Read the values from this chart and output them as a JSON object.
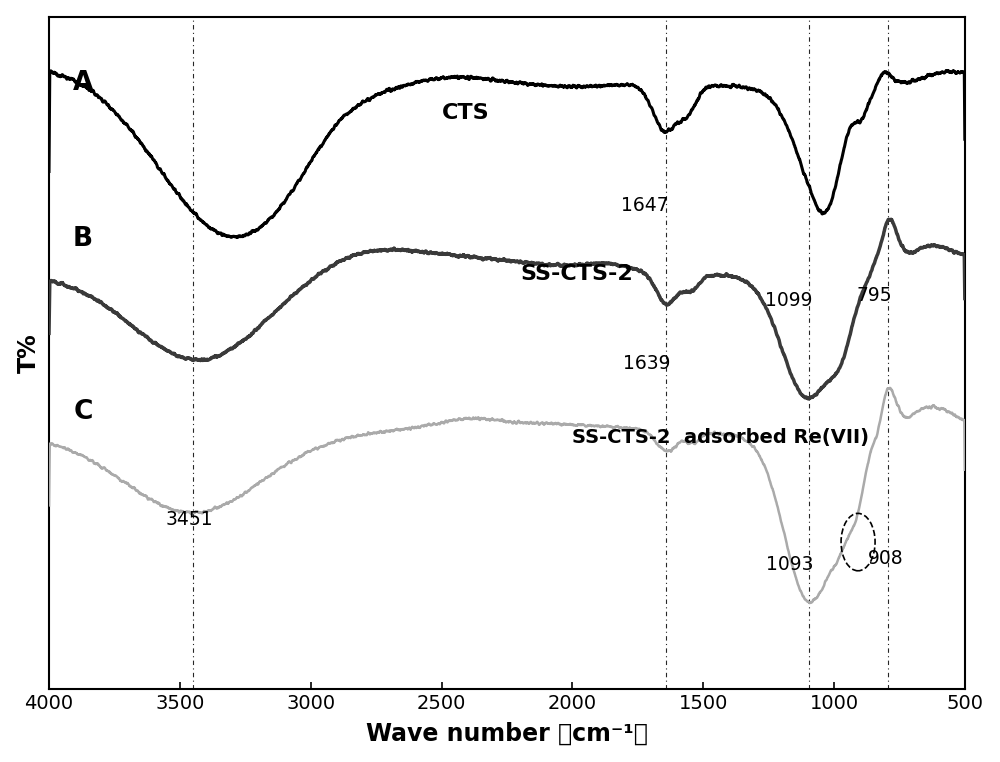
{
  "xlabel": "Wave number （cm⁻¹）",
  "ylabel": "T%",
  "background_color": "#ffffff",
  "curve_A_color": "#000000",
  "curve_B_color": "#3a3a3a",
  "curve_C_color": "#aaaaaa",
  "label_A": "A",
  "label_B": "B",
  "label_C": "C",
  "text_CTS": "CTS",
  "text_B": "SS-CTS-2",
  "text_C": "SS-CTS-2  adsorbed Re(VII)"
}
